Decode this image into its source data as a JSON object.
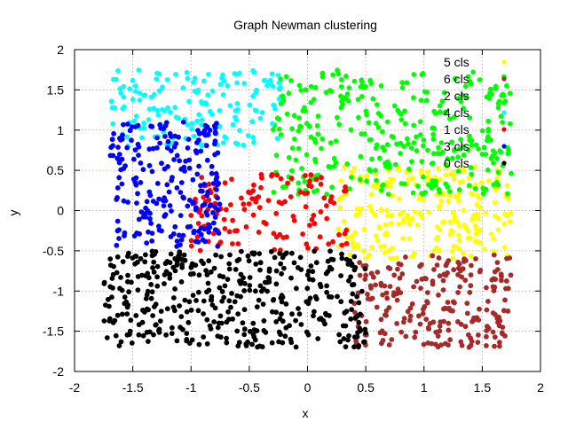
{
  "chart_data": {
    "type": "scatter",
    "title": "Graph Newman clustering",
    "xlabel": "x",
    "ylabel": "y",
    "xlim": [
      -2,
      2
    ],
    "ylim": [
      -2,
      2
    ],
    "xticks": [
      "-2",
      "-1.5",
      "-1",
      "-0.5",
      "0",
      "0.5",
      "1",
      "1.5",
      "2"
    ],
    "yticks": [
      "-2",
      "-1.5",
      "-1",
      "-0.5",
      "0",
      "0.5",
      "1",
      "1.5",
      "2"
    ],
    "grid": true,
    "legend_position": "top-right",
    "series": [
      {
        "name": "5 cls",
        "color": "#ffff00",
        "region": {
          "x": [
            0.25,
            1.75
          ],
          "y": [
            -0.6,
            0.55
          ]
        },
        "points": 230
      },
      {
        "name": "6 cls",
        "color": "#a52a2a",
        "region": {
          "x": [
            0.4,
            1.75
          ],
          "y": [
            -1.7,
            -0.55
          ]
        },
        "points": 230
      },
      {
        "name": "2 cls",
        "color": "#00ff00",
        "region": {
          "x": [
            -0.3,
            1.75
          ],
          "y": [
            0.2,
            1.75
          ]
        },
        "points": 330
      },
      {
        "name": "4 cls",
        "color": "#00ffff",
        "region": {
          "x": [
            -1.7,
            -0.2
          ],
          "y": [
            0.8,
            1.75
          ]
        },
        "points": 160
      },
      {
        "name": "1 cls",
        "color": "#ff0000",
        "region": {
          "x": [
            -1.0,
            0.35
          ],
          "y": [
            -0.5,
            0.45
          ]
        },
        "points": 130
      },
      {
        "name": "3 cls",
        "color": "#0000ff",
        "region": {
          "x": [
            -1.7,
            -0.75
          ],
          "y": [
            -0.45,
            1.1
          ]
        },
        "points": 230
      },
      {
        "name": "0 cls",
        "color": "#000000",
        "region": {
          "x": [
            -1.75,
            0.5
          ],
          "y": [
            -1.7,
            -0.5
          ]
        },
        "points": 420
      }
    ]
  }
}
